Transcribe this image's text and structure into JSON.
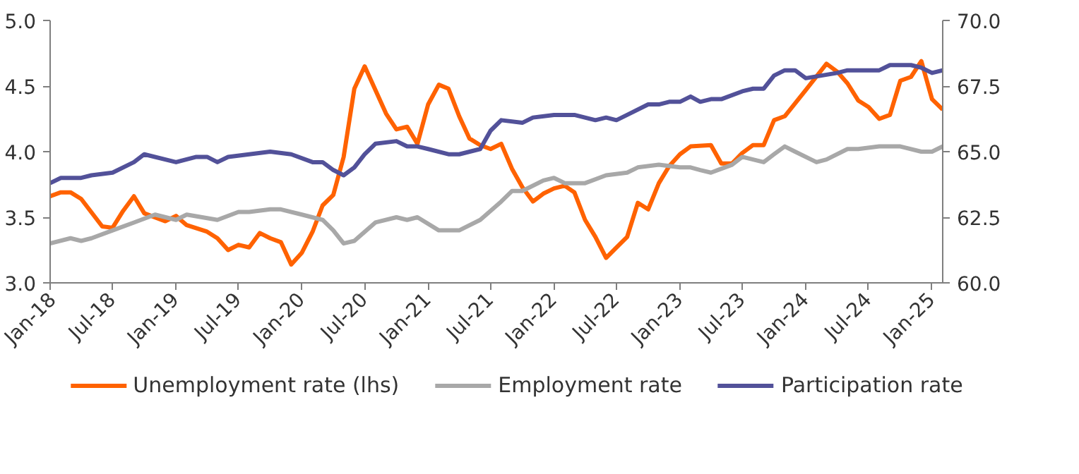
{
  "chart_data": {
    "type": "line",
    "xlim": [
      "2018-01",
      "2025-02"
    ],
    "xticks": [
      {
        "value": "2018-01",
        "label": "Jan-18"
      },
      {
        "value": "2018-07",
        "label": "Jul-18"
      },
      {
        "value": "2019-01",
        "label": "Jan-19"
      },
      {
        "value": "2019-07",
        "label": "Jul-19"
      },
      {
        "value": "2020-01",
        "label": "Jan-20"
      },
      {
        "value": "2020-07",
        "label": "Jul-20"
      },
      {
        "value": "2021-01",
        "label": "Jan-21"
      },
      {
        "value": "2021-07",
        "label": "Jul-21"
      },
      {
        "value": "2022-01",
        "label": "Jan-22"
      },
      {
        "value": "2022-07",
        "label": "Jul-22"
      },
      {
        "value": "2023-01",
        "label": "Jan-23"
      },
      {
        "value": "2023-07",
        "label": "Jul-23"
      },
      {
        "value": "2024-01",
        "label": "Jan-24"
      },
      {
        "value": "2024-07",
        "label": "Jul-24"
      },
      {
        "value": "2025-01",
        "label": "Jan-25"
      }
    ],
    "ylim": [
      3,
      5
    ],
    "yticks": [
      {
        "value": 3,
        "label": "3.0"
      },
      {
        "value": 3.5,
        "label": "3.5"
      },
      {
        "value": 4,
        "label": "4.0"
      },
      {
        "value": 4.5,
        "label": "4.5"
      },
      {
        "value": 5,
        "label": "5.0"
      }
    ],
    "y2lim": [
      60,
      70
    ],
    "y2ticks": [
      {
        "value": 60,
        "label": "60.0"
      },
      {
        "value": 62.5,
        "label": "62.5"
      },
      {
        "value": 65,
        "label": "65.0"
      },
      {
        "value": 67.5,
        "label": "67.5"
      },
      {
        "value": 70,
        "label": "70.0"
      }
    ],
    "grid": false,
    "legend": "bottom",
    "series": [
      {
        "name": "Unemployment rate (lhs)",
        "color": "#ff6200",
        "x": [
          "2018-01",
          "2018-02",
          "2018-03",
          "2018-04",
          "2018-06",
          "2018-07",
          "2018-08",
          "2018-09",
          "2018-10",
          "2018-12",
          "2019-01",
          "2019-02",
          "2019-04",
          "2019-05",
          "2019-06",
          "2019-07",
          "2019-08",
          "2019-09",
          "2019-10",
          "2019-11",
          "2019-12",
          "2020-01",
          "2020-02",
          "2020-03",
          "2020-04",
          "2020-05",
          "2020-06",
          "2020-07",
          "2020-08",
          "2020-09",
          "2020-10",
          "2020-11",
          "2020-12",
          "2021-01",
          "2021-02",
          "2021-03",
          "2021-04",
          "2021-05",
          "2021-06",
          "2021-07",
          "2021-08",
          "2021-09",
          "2021-10",
          "2021-11",
          "2021-12",
          "2022-01",
          "2022-02",
          "2022-03",
          "2022-04",
          "2022-05",
          "2022-06",
          "2022-07",
          "2022-08",
          "2022-09",
          "2022-10",
          "2022-11",
          "2022-12",
          "2023-01",
          "2023-02",
          "2023-04",
          "2023-05",
          "2023-06",
          "2023-07",
          "2023-08",
          "2023-09",
          "2023-10",
          "2023-11",
          "2024-01",
          "2024-03",
          "2024-04",
          "2024-05",
          "2024-06",
          "2024-07",
          "2024-08",
          "2024-09",
          "2024-10",
          "2024-11",
          "2024-12",
          "2025-01",
          "2025-02"
        ],
        "values": [
          3.66,
          3.69,
          3.69,
          3.64,
          3.43,
          3.42,
          3.55,
          3.66,
          3.53,
          3.47,
          3.51,
          3.44,
          3.39,
          3.34,
          3.25,
          3.29,
          3.27,
          3.38,
          3.34,
          3.31,
          3.14,
          3.23,
          3.39,
          3.59,
          3.67,
          3.96,
          4.48,
          4.65,
          4.47,
          4.29,
          4.17,
          4.19,
          4.06,
          4.36,
          4.51,
          4.48,
          4.27,
          4.1,
          4.05,
          4.02,
          4.06,
          3.87,
          3.73,
          3.62,
          3.68,
          3.72,
          3.74,
          3.69,
          3.48,
          3.35,
          3.19,
          3.27,
          3.35,
          3.61,
          3.56,
          3.76,
          3.89,
          3.98,
          4.04,
          4.05,
          3.91,
          3.91,
          3.99,
          4.05,
          4.05,
          4.24,
          4.27,
          4.47,
          4.67,
          4.61,
          4.52,
          4.39,
          4.34,
          4.25,
          4.28,
          4.54,
          4.57,
          4.69,
          4.4,
          4.32
        ]
      },
      {
        "name": "Employment rate",
        "color": "#a8a8a8",
        "axis": "y2",
        "x": [
          "2018-01",
          "2018-03",
          "2018-04",
          "2018-05",
          "2018-07",
          "2018-09",
          "2018-11",
          "2019-01",
          "2019-02",
          "2019-05",
          "2019-07",
          "2019-08",
          "2019-10",
          "2019-11",
          "2020-01",
          "2020-03",
          "2020-04",
          "2020-05",
          "2020-06",
          "2020-08",
          "2020-10",
          "2020-11",
          "2020-12",
          "2021-02",
          "2021-04",
          "2021-06",
          "2021-08",
          "2021-09",
          "2021-10",
          "2021-12",
          "2022-01",
          "2022-02",
          "2022-04",
          "2022-06",
          "2022-08",
          "2022-09",
          "2022-11",
          "2023-01",
          "2023-02",
          "2023-03",
          "2023-04",
          "2023-06",
          "2023-07",
          "2023-09",
          "2023-10",
          "2023-11",
          "2023-12",
          "2024-02",
          "2024-03",
          "2024-05",
          "2024-06",
          "2024-08",
          "2024-10",
          "2024-12",
          "2025-01",
          "2025-02"
        ],
        "values": [
          61.5,
          61.7,
          61.6,
          61.7,
          62.0,
          62.3,
          62.6,
          62.4,
          62.6,
          62.4,
          62.7,
          62.7,
          62.8,
          62.8,
          62.6,
          62.4,
          62.0,
          61.5,
          61.6,
          62.3,
          62.5,
          62.4,
          62.5,
          62.0,
          62.0,
          62.4,
          63.1,
          63.5,
          63.5,
          63.9,
          64.0,
          63.8,
          63.8,
          64.1,
          64.2,
          64.4,
          64.5,
          64.4,
          64.4,
          64.3,
          64.2,
          64.5,
          64.8,
          64.6,
          64.9,
          65.2,
          65.0,
          64.6,
          64.7,
          65.1,
          65.1,
          65.2,
          65.2,
          65.0,
          65.0,
          65.2
        ]
      },
      {
        "name": "Participation rate",
        "color": "#525199",
        "axis": "y2",
        "x": [
          "2018-01",
          "2018-02",
          "2018-04",
          "2018-05",
          "2018-07",
          "2018-09",
          "2018-10",
          "2019-01",
          "2019-03",
          "2019-04",
          "2019-05",
          "2019-06",
          "2019-08",
          "2019-10",
          "2019-12",
          "2020-02",
          "2020-03",
          "2020-04",
          "2020-05",
          "2020-06",
          "2020-07",
          "2020-08",
          "2020-10",
          "2020-11",
          "2020-12",
          "2021-01",
          "2021-03",
          "2021-04",
          "2021-06",
          "2021-07",
          "2021-08",
          "2021-10",
          "2021-11",
          "2022-01",
          "2022-03",
          "2022-05",
          "2022-06",
          "2022-07",
          "2022-08",
          "2022-10",
          "2022-11",
          "2022-12",
          "2023-01",
          "2023-02",
          "2023-03",
          "2023-04",
          "2023-05",
          "2023-07",
          "2023-08",
          "2023-09",
          "2023-10",
          "2023-11",
          "2023-12",
          "2024-01",
          "2024-04",
          "2024-05",
          "2024-07",
          "2024-08",
          "2024-09",
          "2024-11",
          "2024-12",
          "2025-01",
          "2025-02"
        ],
        "values": [
          63.8,
          64.0,
          64.0,
          64.1,
          64.2,
          64.6,
          64.9,
          64.6,
          64.8,
          64.8,
          64.6,
          64.8,
          64.9,
          65.0,
          64.9,
          64.6,
          64.6,
          64.3,
          64.1,
          64.4,
          64.9,
          65.3,
          65.4,
          65.2,
          65.2,
          65.1,
          64.9,
          64.9,
          65.1,
          65.8,
          66.2,
          66.1,
          66.3,
          66.4,
          66.4,
          66.2,
          66.3,
          66.2,
          66.4,
          66.8,
          66.8,
          66.9,
          66.9,
          67.1,
          66.9,
          67.0,
          67.0,
          67.3,
          67.4,
          67.4,
          67.9,
          68.1,
          68.1,
          67.8,
          68.0,
          68.1,
          68.1,
          68.1,
          68.3,
          68.3,
          68.2,
          68.0,
          68.1
        ]
      }
    ]
  }
}
